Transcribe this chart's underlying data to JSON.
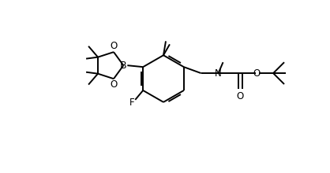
{
  "background_color": "#ffffff",
  "line_color": "#000000",
  "line_width": 1.4,
  "font_size": 8.5,
  "figsize": [
    4.18,
    2.2
  ],
  "dpi": 100,
  "xlim": [
    0,
    418
  ],
  "ylim": [
    0,
    220
  ]
}
